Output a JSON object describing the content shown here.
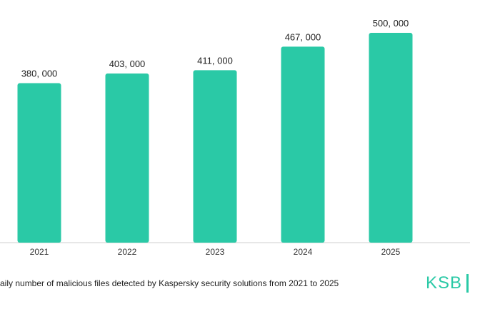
{
  "chart_data": {
    "type": "bar",
    "categories": [
      "2021",
      "2022",
      "2023",
      "2024",
      "2025"
    ],
    "values": [
      380000,
      403000,
      411000,
      467000,
      500000
    ],
    "value_labels": [
      "380, 000",
      "403, 000",
      "411, 000",
      "467, 000",
      "500, 000"
    ],
    "title": "",
    "xlabel": "",
    "ylabel": "",
    "ylim": [
      0,
      500000
    ],
    "grid": false,
    "bar_color": "#2ac9a6"
  },
  "caption": "aily number of malicious files detected by Kaspersky security solutions from 2021 to 2025",
  "logo": {
    "text": "KSB",
    "color": "#2ac9a6"
  }
}
